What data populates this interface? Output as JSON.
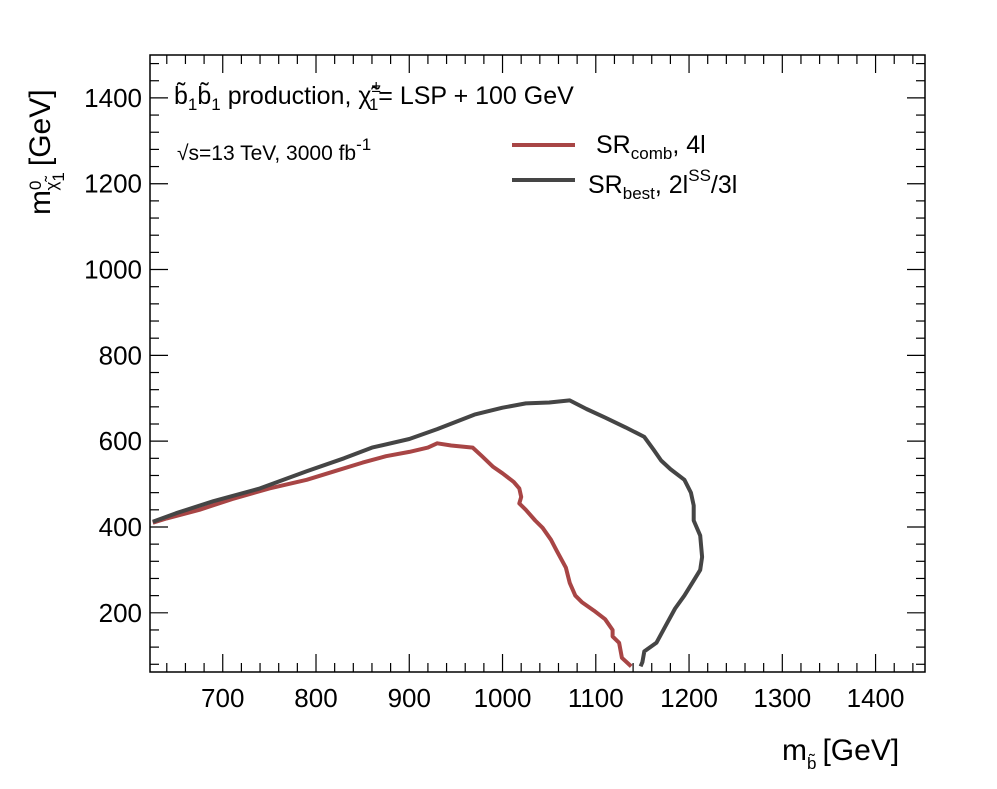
{
  "chart_data": {
    "type": "line",
    "xlabel": {
      "text": "m",
      "sub": "b̃",
      "unit": "[GeV]"
    },
    "ylabel": {
      "text": "m",
      "sub": "χ̃",
      "sub2": "1",
      "sup": "0",
      "unit": "[GeV]"
    },
    "xlim": [
      622,
      1453
    ],
    "ylim": [
      62,
      1500
    ],
    "x_ticks": [
      700,
      800,
      900,
      1000,
      1100,
      1200,
      1300,
      1400
    ],
    "y_ticks": [
      200,
      400,
      600,
      800,
      1000,
      1200,
      1400
    ],
    "x_minor_step": 20,
    "y_minor_step": 40,
    "grid": false,
    "legend_position": "top-right",
    "annotations": {
      "process": {
        "b1a": "b̃",
        "sub1": "1",
        "b1b": "b̃",
        "sub2": "1",
        "middle": " production, ",
        "chi": "χ̃",
        "chi_sup": "±",
        "chi_sub": "1",
        "rest": "= LSP + 100 GeV"
      },
      "energy": {
        "sqrt": "√s",
        "text": "=13 TeV, 3000 fb",
        "sup": "-1"
      }
    },
    "series": [
      {
        "name": "SR_comb, 4l",
        "label_main": "SR",
        "label_sub": "comb",
        "label_rest": ", 4l",
        "color": "#a84545",
        "points": [
          [
            625,
            410
          ],
          [
            640,
            420
          ],
          [
            675,
            440
          ],
          [
            710,
            465
          ],
          [
            750,
            490
          ],
          [
            790,
            510
          ],
          [
            820,
            530
          ],
          [
            850,
            550
          ],
          [
            875,
            565
          ],
          [
            900,
            575
          ],
          [
            920,
            585
          ],
          [
            930,
            595
          ],
          [
            945,
            590
          ],
          [
            968,
            585
          ],
          [
            978,
            565
          ],
          [
            990,
            540
          ],
          [
            1000,
            525
          ],
          [
            1012,
            505
          ],
          [
            1018,
            490
          ],
          [
            1020,
            470
          ],
          [
            1018,
            455
          ],
          [
            1025,
            440
          ],
          [
            1035,
            415
          ],
          [
            1043,
            398
          ],
          [
            1052,
            370
          ],
          [
            1058,
            345
          ],
          [
            1068,
            305
          ],
          [
            1072,
            270
          ],
          [
            1078,
            240
          ],
          [
            1085,
            225
          ],
          [
            1098,
            205
          ],
          [
            1110,
            185
          ],
          [
            1118,
            160
          ],
          [
            1118,
            145
          ],
          [
            1125,
            130
          ],
          [
            1128,
            95
          ],
          [
            1138,
            75
          ]
        ]
      },
      {
        "name": "SR_best, 2l^SS/3l",
        "label_main": "SR",
        "label_sub": "best",
        "label_rest_a": ", 2l",
        "label_sup": "SS",
        "label_rest_b": "/3l",
        "color": "#454545",
        "points": [
          [
            625,
            412
          ],
          [
            650,
            432
          ],
          [
            690,
            460
          ],
          [
            740,
            490
          ],
          [
            790,
            530
          ],
          [
            830,
            560
          ],
          [
            860,
            585
          ],
          [
            900,
            605
          ],
          [
            930,
            628
          ],
          [
            970,
            662
          ],
          [
            1000,
            678
          ],
          [
            1025,
            688
          ],
          [
            1050,
            690
          ],
          [
            1072,
            695
          ],
          [
            1090,
            675
          ],
          [
            1110,
            655
          ],
          [
            1132,
            632
          ],
          [
            1152,
            610
          ],
          [
            1162,
            580
          ],
          [
            1170,
            555
          ],
          [
            1180,
            535
          ],
          [
            1195,
            510
          ],
          [
            1202,
            480
          ],
          [
            1205,
            450
          ],
          [
            1205,
            415
          ],
          [
            1212,
            380
          ],
          [
            1214,
            330
          ],
          [
            1212,
            300
          ],
          [
            1205,
            275
          ],
          [
            1195,
            240
          ],
          [
            1185,
            210
          ],
          [
            1175,
            170
          ],
          [
            1165,
            130
          ],
          [
            1152,
            110
          ],
          [
            1150,
            85
          ],
          [
            1148,
            75
          ]
        ]
      }
    ]
  }
}
